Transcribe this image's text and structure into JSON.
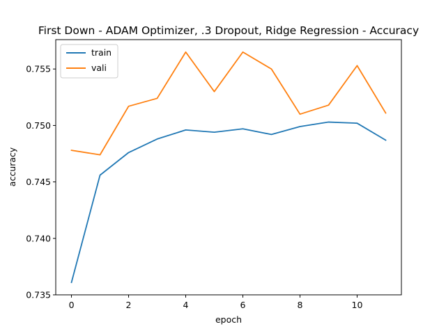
{
  "chart_data": {
    "type": "line",
    "title": "First Down - ADAM Optimizer, .3 Dropout, Ridge Regression - Accuracy",
    "xlabel": "epoch",
    "ylabel": "accuracy",
    "x": [
      0,
      1,
      2,
      3,
      4,
      5,
      6,
      7,
      8,
      9,
      10,
      11
    ],
    "xlim": [
      -0.55,
      11.55
    ],
    "ylim": [
      0.735,
      0.7576
    ],
    "xticks": [
      0,
      2,
      4,
      6,
      8,
      10
    ],
    "xtick_labels": [
      "0",
      "2",
      "4",
      "6",
      "8",
      "10"
    ],
    "yticks": [
      0.735,
      0.74,
      0.745,
      0.75,
      0.755
    ],
    "ytick_labels": [
      "0.735",
      "0.740",
      "0.745",
      "0.750",
      "0.755"
    ],
    "grid": false,
    "legend_position": "top-left",
    "series": [
      {
        "name": "train",
        "color": "#1f77b4",
        "values": [
          0.7361,
          0.7456,
          0.7476,
          0.7488,
          0.7496,
          0.7494,
          0.7497,
          0.7492,
          0.7499,
          0.7503,
          0.7502,
          0.7487
        ]
      },
      {
        "name": "vali",
        "color": "#ff7f0e",
        "values": [
          0.7478,
          0.7474,
          0.7517,
          0.7524,
          0.7565,
          0.753,
          0.7565,
          0.755,
          0.751,
          0.7518,
          0.7553,
          0.7511
        ]
      }
    ]
  }
}
